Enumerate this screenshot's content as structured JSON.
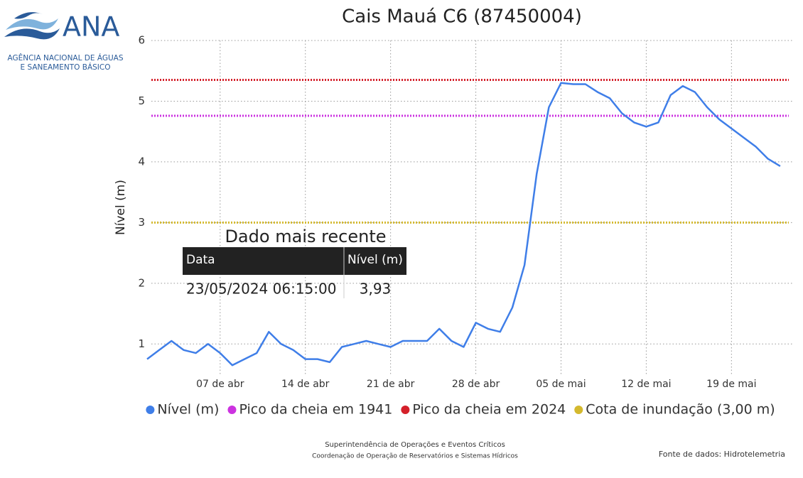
{
  "chart_data": {
    "type": "line",
    "title": "Cais Mauá C6 (87450004)",
    "y_label": "Nível (m)",
    "logo": {
      "name": "ANA",
      "line1": "AGÊNCIA NACIONAL DE ÁGUAS",
      "line2": "E SANEAMENTO BÁSICO"
    },
    "x": [
      "2024-04-01",
      "2024-04-02",
      "2024-04-03",
      "2024-04-04",
      "2024-04-05",
      "2024-04-06",
      "2024-04-07",
      "2024-04-08",
      "2024-04-09",
      "2024-04-10",
      "2024-04-11",
      "2024-04-12",
      "2024-04-13",
      "2024-04-14",
      "2024-04-15",
      "2024-04-16",
      "2024-04-17",
      "2024-04-18",
      "2024-04-19",
      "2024-04-20",
      "2024-04-21",
      "2024-04-22",
      "2024-04-23",
      "2024-04-24",
      "2024-04-25",
      "2024-04-26",
      "2024-04-27",
      "2024-04-28",
      "2024-04-29",
      "2024-04-30",
      "2024-05-01",
      "2024-05-02",
      "2024-05-03",
      "2024-05-04",
      "2024-05-05",
      "2024-05-06",
      "2024-05-07",
      "2024-05-08",
      "2024-05-09",
      "2024-05-10",
      "2024-05-11",
      "2024-05-12",
      "2024-05-13",
      "2024-05-14",
      "2024-05-15",
      "2024-05-16",
      "2024-05-17",
      "2024-05-18",
      "2024-05-19",
      "2024-05-20",
      "2024-05-21",
      "2024-05-22",
      "2024-05-23"
    ],
    "series": [
      {
        "name": "Nível (m)",
        "color": "#3f7ee8",
        "values": [
          0.75,
          0.9,
          1.05,
          0.9,
          0.85,
          1.0,
          0.85,
          0.65,
          0.75,
          0.85,
          1.2,
          1.0,
          0.9,
          0.75,
          0.75,
          0.7,
          0.95,
          1.0,
          1.05,
          1.0,
          0.95,
          1.05,
          1.05,
          1.05,
          1.25,
          1.05,
          0.95,
          1.35,
          1.25,
          1.2,
          1.6,
          2.3,
          3.8,
          4.9,
          5.3,
          5.28,
          5.28,
          5.15,
          5.05,
          4.8,
          4.65,
          4.58,
          4.65,
          5.1,
          5.25,
          5.15,
          4.9,
          4.7,
          4.55,
          4.4,
          4.25,
          4.05,
          3.93
        ]
      }
    ],
    "hlines": [
      {
        "name": "Pico da cheia em 1941",
        "color": "#cc33e0",
        "value": 4.76
      },
      {
        "name": "Pico da cheia em 2024",
        "color": "#d4202a",
        "value": 5.35
      },
      {
        "name": "Cota de inundação (3,00 m)",
        "color": "#d4b92e",
        "value": 3
      }
    ],
    "xlim": [
      "2024-04-01",
      "2024-05-24"
    ],
    "xticks": [
      {
        "value": "2024-04-07",
        "label": "07 de abr"
      },
      {
        "value": "2024-04-14",
        "label": "14 de abr"
      },
      {
        "value": "2024-04-21",
        "label": "21 de abr"
      },
      {
        "value": "2024-04-28",
        "label": "28 de abr"
      },
      {
        "value": "2024-05-05",
        "label": "05 de mai"
      },
      {
        "value": "2024-05-12",
        "label": "12 de mai"
      },
      {
        "value": "2024-05-19",
        "label": "19 de mai"
      }
    ],
    "ylim": [
      0.5,
      6
    ],
    "yticks": [
      1,
      2,
      3,
      4,
      5,
      6
    ],
    "grid": true,
    "latest": {
      "title": "Dado mais recente",
      "headers": [
        "Data",
        "Nível (m)"
      ],
      "row": [
        "23/05/2024 06:15:00",
        "3,93"
      ]
    },
    "footer": {
      "line1": "Superintendência de Operações e Eventos Críticos",
      "line2": "Coordenação de Operação de Reservatórios e Sistemas Hídricos",
      "source": "Fonte de dados: Hidrotelemetria"
    }
  }
}
